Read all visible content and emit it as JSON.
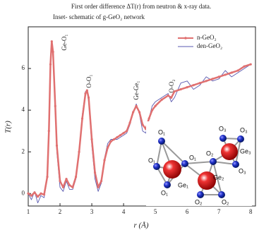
{
  "chart_data": {
    "type": "line",
    "title": "First order difference ΔT(r) from neutron & x-ray data.",
    "subtitle": "Inset- schematic of g-GeO₂ network",
    "xlabel": "r (Å)",
    "ylabel": "T(r)",
    "xlim": [
      1,
      8.15
    ],
    "ylim": [
      -0.6,
      8.0
    ],
    "xticks": [
      1,
      2,
      3,
      4,
      5,
      6,
      7,
      8
    ],
    "yticks": [
      0,
      2,
      4,
      6
    ],
    "legend": "top-right",
    "annotations": [
      "Ge-O₁",
      "O-O₁",
      "Ge-Ge₁",
      "O-O₂"
    ],
    "x": [
      1.0,
      1.1,
      1.2,
      1.3,
      1.4,
      1.5,
      1.6,
      1.65,
      1.7,
      1.74,
      1.78,
      1.85,
      1.9,
      2.0,
      2.1,
      2.2,
      2.3,
      2.4,
      2.5,
      2.6,
      2.7,
      2.8,
      2.85,
      2.9,
      3.0,
      3.1,
      3.2,
      3.3,
      3.4,
      3.5,
      3.6,
      3.7,
      3.8,
      3.9,
      4.0,
      4.1,
      4.2,
      4.3,
      4.4,
      4.5,
      4.6,
      4.7,
      4.8,
      4.9,
      5.0,
      5.2,
      5.4,
      5.5,
      5.6,
      5.8,
      6.0,
      6.2,
      6.4,
      6.6,
      6.8,
      7.0,
      7.2,
      7.4,
      7.6,
      7.8,
      8.0
    ],
    "series": [
      {
        "name": "n-GeO₂",
        "color": "#e07070",
        "values": [
          0,
          -0.1,
          0.05,
          -0.15,
          0.0,
          -0.05,
          0.8,
          3.0,
          6.2,
          7.3,
          6.8,
          4.2,
          2.3,
          0.6,
          0.3,
          0.7,
          0.4,
          0.3,
          0.8,
          2.0,
          3.6,
          4.8,
          4.95,
          4.6,
          2.6,
          1.0,
          0.3,
          0.6,
          1.6,
          2.2,
          2.5,
          2.6,
          2.7,
          2.8,
          2.9,
          3.0,
          3.4,
          3.9,
          4.2,
          3.9,
          3.3,
          3.1,
          3.6,
          4.0,
          4.2,
          4.5,
          4.7,
          4.6,
          4.9,
          5.0,
          5.1,
          5.2,
          5.3,
          5.4,
          5.5,
          5.6,
          5.7,
          5.8,
          5.9,
          6.1,
          6.2
        ]
      },
      {
        "name": "den-GeO₂",
        "color": "#5a5ab0",
        "values": [
          0,
          -0.3,
          0.1,
          -0.45,
          -0.1,
          -0.2,
          0.7,
          3.1,
          6.3,
          7.1,
          6.6,
          3.9,
          2.0,
          0.3,
          0.1,
          0.6,
          0.2,
          0.2,
          0.7,
          2.1,
          3.8,
          4.9,
          4.9,
          4.4,
          2.3,
          0.7,
          0.1,
          0.5,
          1.7,
          2.4,
          2.6,
          2.6,
          2.6,
          2.7,
          2.8,
          2.9,
          3.3,
          3.9,
          4.3,
          3.8,
          3.0,
          2.9,
          3.6,
          4.2,
          4.4,
          4.6,
          4.8,
          4.4,
          4.6,
          5.3,
          5.4,
          5.0,
          5.2,
          5.6,
          5.4,
          5.5,
          5.9,
          5.6,
          5.8,
          6.0,
          6.2
        ]
      }
    ],
    "inset_labels": [
      "O₁",
      "O₁",
      "O₁",
      "O₁",
      "Ge₁",
      "O₂",
      "Ge₂",
      "O₂",
      "O₂",
      "O₃",
      "O₃",
      "Ge₃",
      "O₃"
    ]
  }
}
